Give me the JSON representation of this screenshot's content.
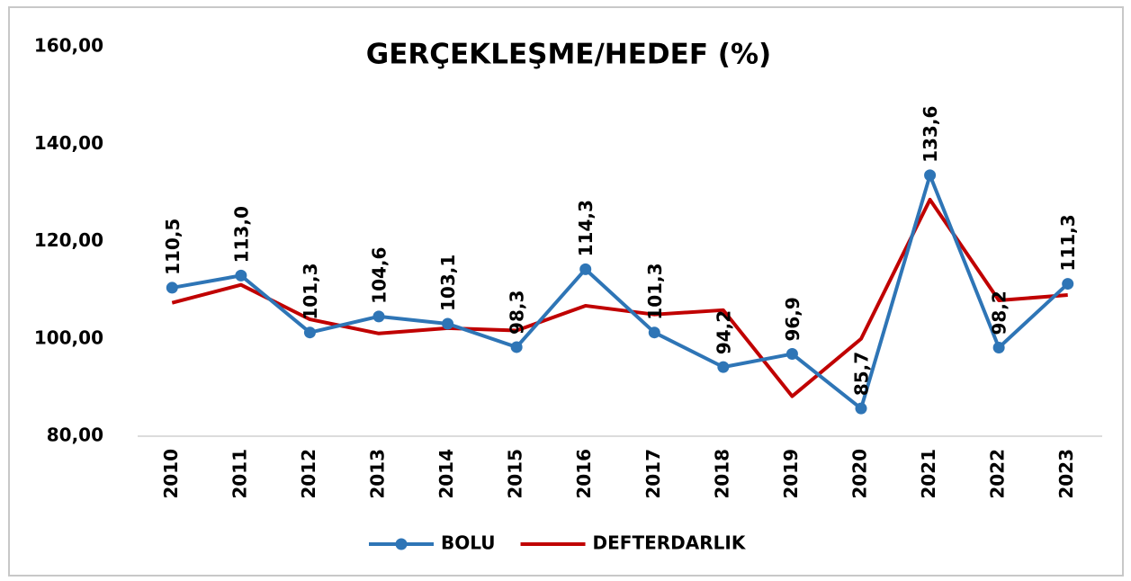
{
  "chart_data": {
    "type": "line",
    "title": "GERÇEKLEŞME/HEDEF  (%)",
    "categories": [
      "2010",
      "2011",
      "2012",
      "2013",
      "2014",
      "2015",
      "2016",
      "2017",
      "2018",
      "2019",
      "2020",
      "2021",
      "2022",
      "2023"
    ],
    "series": [
      {
        "name": "BOLU",
        "color": "#2e75b6",
        "marker": "circle",
        "values": [
          110.5,
          113.0,
          101.3,
          104.6,
          103.1,
          98.3,
          114.3,
          101.3,
          94.2,
          96.9,
          85.7,
          133.6,
          98.2,
          111.3
        ],
        "value_labels": [
          "110,5",
          "113,0",
          "101,3",
          "104,6",
          "103,1",
          "98,3",
          "114,3",
          "101,3",
          "94,2",
          "96,9",
          "85,7",
          "133,6",
          "98,2",
          "111,3"
        ]
      },
      {
        "name": "DEFTERDARLIK",
        "color": "#c00000",
        "values": [
          107.4,
          111.1,
          104.0,
          101.1,
          102.2,
          101.7,
          106.8,
          105.0,
          105.9,
          88.2,
          100.0,
          128.6,
          107.9,
          109.0
        ]
      }
    ],
    "ylim": [
      80,
      160
    ],
    "yticks": [
      {
        "value": 80,
        "label": "80,00"
      },
      {
        "value": 100,
        "label": "100,00"
      },
      {
        "value": 120,
        "label": "120,00"
      },
      {
        "value": 140,
        "label": "140,00"
      },
      {
        "value": 160,
        "label": "160,00"
      }
    ],
    "legend": "bottom"
  }
}
